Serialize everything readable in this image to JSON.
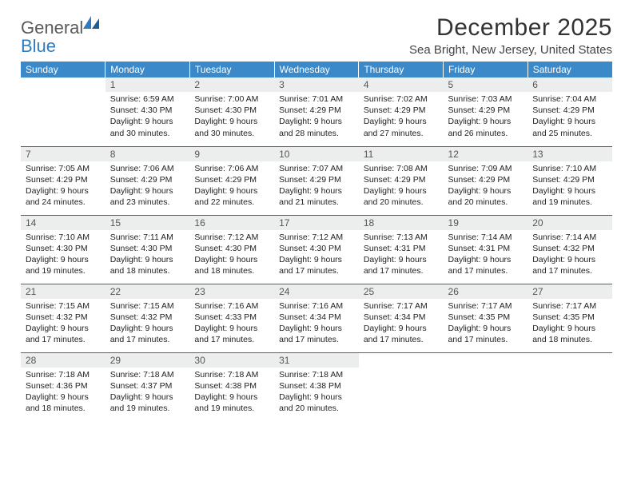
{
  "logo": {
    "word1": "General",
    "word2": "Blue"
  },
  "title": "December 2025",
  "location": "Sea Bright, New Jersey, United States",
  "colors": {
    "header_bg": "#3b89c9",
    "header_text": "#ffffff",
    "daynum_bg": "#eceded",
    "daynum_text": "#555555",
    "body_text": "#222222",
    "rule": "#2a6ea8",
    "logo_grey": "#5a5a5a",
    "logo_blue": "#2f7bbf"
  },
  "fonts": {
    "title_pt": 30,
    "location_pt": 15,
    "th_pt": 12,
    "daynum_pt": 12,
    "body_pt": 10.5
  },
  "weekdays": [
    "Sunday",
    "Monday",
    "Tuesday",
    "Wednesday",
    "Thursday",
    "Friday",
    "Saturday"
  ],
  "first_weekday_index": 1,
  "days_in_month": 31,
  "days": {
    "1": {
      "sunrise": "6:59 AM",
      "sunset": "4:30 PM",
      "daylight": "9 hours and 30 minutes."
    },
    "2": {
      "sunrise": "7:00 AM",
      "sunset": "4:30 PM",
      "daylight": "9 hours and 30 minutes."
    },
    "3": {
      "sunrise": "7:01 AM",
      "sunset": "4:29 PM",
      "daylight": "9 hours and 28 minutes."
    },
    "4": {
      "sunrise": "7:02 AM",
      "sunset": "4:29 PM",
      "daylight": "9 hours and 27 minutes."
    },
    "5": {
      "sunrise": "7:03 AM",
      "sunset": "4:29 PM",
      "daylight": "9 hours and 26 minutes."
    },
    "6": {
      "sunrise": "7:04 AM",
      "sunset": "4:29 PM",
      "daylight": "9 hours and 25 minutes."
    },
    "7": {
      "sunrise": "7:05 AM",
      "sunset": "4:29 PM",
      "daylight": "9 hours and 24 minutes."
    },
    "8": {
      "sunrise": "7:06 AM",
      "sunset": "4:29 PM",
      "daylight": "9 hours and 23 minutes."
    },
    "9": {
      "sunrise": "7:06 AM",
      "sunset": "4:29 PM",
      "daylight": "9 hours and 22 minutes."
    },
    "10": {
      "sunrise": "7:07 AM",
      "sunset": "4:29 PM",
      "daylight": "9 hours and 21 minutes."
    },
    "11": {
      "sunrise": "7:08 AM",
      "sunset": "4:29 PM",
      "daylight": "9 hours and 20 minutes."
    },
    "12": {
      "sunrise": "7:09 AM",
      "sunset": "4:29 PM",
      "daylight": "9 hours and 20 minutes."
    },
    "13": {
      "sunrise": "7:10 AM",
      "sunset": "4:29 PM",
      "daylight": "9 hours and 19 minutes."
    },
    "14": {
      "sunrise": "7:10 AM",
      "sunset": "4:30 PM",
      "daylight": "9 hours and 19 minutes."
    },
    "15": {
      "sunrise": "7:11 AM",
      "sunset": "4:30 PM",
      "daylight": "9 hours and 18 minutes."
    },
    "16": {
      "sunrise": "7:12 AM",
      "sunset": "4:30 PM",
      "daylight": "9 hours and 18 minutes."
    },
    "17": {
      "sunrise": "7:12 AM",
      "sunset": "4:30 PM",
      "daylight": "9 hours and 17 minutes."
    },
    "18": {
      "sunrise": "7:13 AM",
      "sunset": "4:31 PM",
      "daylight": "9 hours and 17 minutes."
    },
    "19": {
      "sunrise": "7:14 AM",
      "sunset": "4:31 PM",
      "daylight": "9 hours and 17 minutes."
    },
    "20": {
      "sunrise": "7:14 AM",
      "sunset": "4:32 PM",
      "daylight": "9 hours and 17 minutes."
    },
    "21": {
      "sunrise": "7:15 AM",
      "sunset": "4:32 PM",
      "daylight": "9 hours and 17 minutes."
    },
    "22": {
      "sunrise": "7:15 AM",
      "sunset": "4:32 PM",
      "daylight": "9 hours and 17 minutes."
    },
    "23": {
      "sunrise": "7:16 AM",
      "sunset": "4:33 PM",
      "daylight": "9 hours and 17 minutes."
    },
    "24": {
      "sunrise": "7:16 AM",
      "sunset": "4:34 PM",
      "daylight": "9 hours and 17 minutes."
    },
    "25": {
      "sunrise": "7:17 AM",
      "sunset": "4:34 PM",
      "daylight": "9 hours and 17 minutes."
    },
    "26": {
      "sunrise": "7:17 AM",
      "sunset": "4:35 PM",
      "daylight": "9 hours and 17 minutes."
    },
    "27": {
      "sunrise": "7:17 AM",
      "sunset": "4:35 PM",
      "daylight": "9 hours and 18 minutes."
    },
    "28": {
      "sunrise": "7:18 AM",
      "sunset": "4:36 PM",
      "daylight": "9 hours and 18 minutes."
    },
    "29": {
      "sunrise": "7:18 AM",
      "sunset": "4:37 PM",
      "daylight": "9 hours and 19 minutes."
    },
    "30": {
      "sunrise": "7:18 AM",
      "sunset": "4:38 PM",
      "daylight": "9 hours and 19 minutes."
    },
    "31": {
      "sunrise": "7:18 AM",
      "sunset": "4:38 PM",
      "daylight": "9 hours and 20 minutes."
    }
  },
  "labels": {
    "sunrise": "Sunrise:",
    "sunset": "Sunset:",
    "daylight": "Daylight:"
  }
}
